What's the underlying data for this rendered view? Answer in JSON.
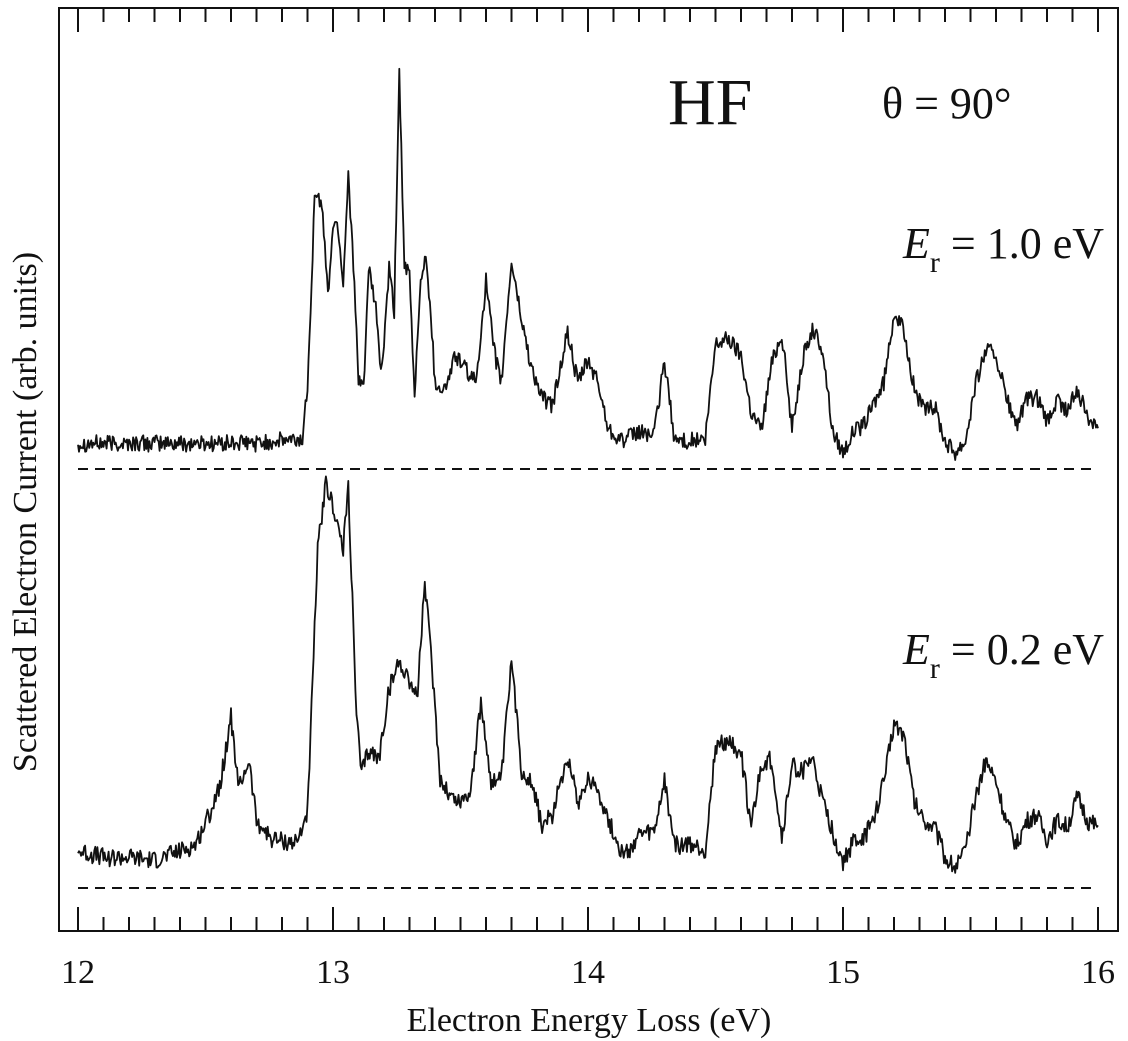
{
  "chart_data": {
    "type": "line",
    "title": "",
    "xlabel": "Electron Energy Loss (eV)",
    "ylabel": "Scattered Electron Current (arb. units)",
    "xlim": [
      12,
      16
    ],
    "x_ticks": [
      "12",
      "13",
      "14",
      "15",
      "16"
    ],
    "x_minor_step": 0.1,
    "y_ticks_shown": false,
    "grid": false,
    "legend": "none",
    "annotations": {
      "molecule": "HF",
      "angle": "θ = 90°",
      "series_labels": [
        {
          "symbol": "E",
          "subscript": "r",
          "rest": " = 1.0 eV"
        },
        {
          "symbol": "E",
          "subscript": "r",
          "rest": " = 0.2 eV"
        }
      ]
    },
    "series": [
      {
        "label_index": 0,
        "baseline": 0,
        "points": [
          [
            12.0,
            0.09
          ],
          [
            12.1,
            0.09
          ],
          [
            12.2,
            0.09
          ],
          [
            12.3,
            0.09
          ],
          [
            12.4,
            0.09
          ],
          [
            12.5,
            0.09
          ],
          [
            12.6,
            0.09
          ],
          [
            12.7,
            0.09
          ],
          [
            12.8,
            0.1
          ],
          [
            12.88,
            0.1
          ],
          [
            12.9,
            0.3
          ],
          [
            12.93,
            0.99
          ],
          [
            12.96,
            0.9
          ],
          [
            12.98,
            0.6
          ],
          [
            13.0,
            0.86
          ],
          [
            13.02,
            0.85
          ],
          [
            13.04,
            0.65
          ],
          [
            13.06,
            1.04
          ],
          [
            13.08,
            0.72
          ],
          [
            13.1,
            0.3
          ],
          [
            13.12,
            0.29
          ],
          [
            13.14,
            0.7
          ],
          [
            13.17,
            0.55
          ],
          [
            13.19,
            0.32
          ],
          [
            13.22,
            0.7
          ],
          [
            13.24,
            0.55
          ],
          [
            13.26,
            1.4
          ],
          [
            13.28,
            0.7
          ],
          [
            13.3,
            0.68
          ],
          [
            13.32,
            0.25
          ],
          [
            13.34,
            0.62
          ],
          [
            13.36,
            0.75
          ],
          [
            13.38,
            0.6
          ],
          [
            13.4,
            0.3
          ],
          [
            13.44,
            0.28
          ],
          [
            13.48,
            0.4
          ],
          [
            13.52,
            0.35
          ],
          [
            13.56,
            0.3
          ],
          [
            13.6,
            0.66
          ],
          [
            13.63,
            0.42
          ],
          [
            13.66,
            0.3
          ],
          [
            13.7,
            0.73
          ],
          [
            13.74,
            0.52
          ],
          [
            13.78,
            0.35
          ],
          [
            13.82,
            0.25
          ],
          [
            13.86,
            0.22
          ],
          [
            13.92,
            0.48
          ],
          [
            13.96,
            0.3
          ],
          [
            14.0,
            0.38
          ],
          [
            14.04,
            0.3
          ],
          [
            14.08,
            0.14
          ],
          [
            14.14,
            0.1
          ],
          [
            14.2,
            0.13
          ],
          [
            14.26,
            0.12
          ],
          [
            14.3,
            0.38
          ],
          [
            14.34,
            0.1
          ],
          [
            14.4,
            0.1
          ],
          [
            14.46,
            0.1
          ],
          [
            14.5,
            0.44
          ],
          [
            14.55,
            0.46
          ],
          [
            14.6,
            0.4
          ],
          [
            14.64,
            0.2
          ],
          [
            14.68,
            0.14
          ],
          [
            14.72,
            0.37
          ],
          [
            14.76,
            0.48
          ],
          [
            14.8,
            0.14
          ],
          [
            14.84,
            0.38
          ],
          [
            14.88,
            0.49
          ],
          [
            14.92,
            0.42
          ],
          [
            14.96,
            0.13
          ],
          [
            15.0,
            0.06
          ],
          [
            15.04,
            0.13
          ],
          [
            15.08,
            0.15
          ],
          [
            15.12,
            0.23
          ],
          [
            15.16,
            0.3
          ],
          [
            15.2,
            0.55
          ],
          [
            15.24,
            0.48
          ],
          [
            15.28,
            0.28
          ],
          [
            15.32,
            0.2
          ],
          [
            15.36,
            0.22
          ],
          [
            15.4,
            0.1
          ],
          [
            15.44,
            0.06
          ],
          [
            15.48,
            0.1
          ],
          [
            15.52,
            0.3
          ],
          [
            15.56,
            0.42
          ],
          [
            15.6,
            0.4
          ],
          [
            15.64,
            0.25
          ],
          [
            15.68,
            0.15
          ],
          [
            15.72,
            0.24
          ],
          [
            15.76,
            0.25
          ],
          [
            15.8,
            0.16
          ],
          [
            15.84,
            0.24
          ],
          [
            15.88,
            0.2
          ],
          [
            15.92,
            0.28
          ],
          [
            15.96,
            0.18
          ],
          [
            16.0,
            0.16
          ]
        ]
      },
      {
        "label_index": 1,
        "baseline": 0,
        "points": [
          [
            12.0,
            0.12
          ],
          [
            12.1,
            0.1
          ],
          [
            12.2,
            0.1
          ],
          [
            12.3,
            0.09
          ],
          [
            12.4,
            0.12
          ],
          [
            12.46,
            0.14
          ],
          [
            12.52,
            0.25
          ],
          [
            12.56,
            0.35
          ],
          [
            12.6,
            0.56
          ],
          [
            12.63,
            0.32
          ],
          [
            12.67,
            0.42
          ],
          [
            12.7,
            0.22
          ],
          [
            12.76,
            0.16
          ],
          [
            12.82,
            0.15
          ],
          [
            12.86,
            0.15
          ],
          [
            12.9,
            0.25
          ],
          [
            12.94,
            1.1
          ],
          [
            12.97,
            1.32
          ],
          [
            13.0,
            1.25
          ],
          [
            13.02,
            1.18
          ],
          [
            13.04,
            1.1
          ],
          [
            13.06,
            1.32
          ],
          [
            13.09,
            0.6
          ],
          [
            13.11,
            0.37
          ],
          [
            13.14,
            0.45
          ],
          [
            13.18,
            0.42
          ],
          [
            13.22,
            0.65
          ],
          [
            13.26,
            0.74
          ],
          [
            13.3,
            0.68
          ],
          [
            13.33,
            0.62
          ],
          [
            13.36,
            1.0
          ],
          [
            13.39,
            0.7
          ],
          [
            13.42,
            0.36
          ],
          [
            13.46,
            0.3
          ],
          [
            13.5,
            0.28
          ],
          [
            13.54,
            0.32
          ],
          [
            13.58,
            0.6
          ],
          [
            13.62,
            0.35
          ],
          [
            13.66,
            0.35
          ],
          [
            13.7,
            0.74
          ],
          [
            13.74,
            0.38
          ],
          [
            13.78,
            0.35
          ],
          [
            13.82,
            0.2
          ],
          [
            13.86,
            0.24
          ],
          [
            13.92,
            0.44
          ],
          [
            13.96,
            0.28
          ],
          [
            14.0,
            0.36
          ],
          [
            14.04,
            0.32
          ],
          [
            14.08,
            0.22
          ],
          [
            14.14,
            0.1
          ],
          [
            14.2,
            0.17
          ],
          [
            14.26,
            0.18
          ],
          [
            14.3,
            0.35
          ],
          [
            14.34,
            0.14
          ],
          [
            14.4,
            0.14
          ],
          [
            14.46,
            0.12
          ],
          [
            14.5,
            0.46
          ],
          [
            14.55,
            0.48
          ],
          [
            14.6,
            0.44
          ],
          [
            14.64,
            0.2
          ],
          [
            14.68,
            0.4
          ],
          [
            14.72,
            0.42
          ],
          [
            14.76,
            0.16
          ],
          [
            14.8,
            0.4
          ],
          [
            14.84,
            0.38
          ],
          [
            14.88,
            0.42
          ],
          [
            14.92,
            0.28
          ],
          [
            14.96,
            0.18
          ],
          [
            15.0,
            0.08
          ],
          [
            15.04,
            0.15
          ],
          [
            15.08,
            0.16
          ],
          [
            15.12,
            0.22
          ],
          [
            15.16,
            0.35
          ],
          [
            15.2,
            0.54
          ],
          [
            15.24,
            0.5
          ],
          [
            15.28,
            0.28
          ],
          [
            15.32,
            0.22
          ],
          [
            15.36,
            0.2
          ],
          [
            15.4,
            0.1
          ],
          [
            15.44,
            0.07
          ],
          [
            15.48,
            0.12
          ],
          [
            15.52,
            0.3
          ],
          [
            15.56,
            0.42
          ],
          [
            15.6,
            0.35
          ],
          [
            15.64,
            0.22
          ],
          [
            15.68,
            0.14
          ],
          [
            15.72,
            0.22
          ],
          [
            15.76,
            0.24
          ],
          [
            15.8,
            0.16
          ],
          [
            15.84,
            0.22
          ],
          [
            15.88,
            0.2
          ],
          [
            15.92,
            0.3
          ],
          [
            15.96,
            0.22
          ],
          [
            16.0,
            0.2
          ]
        ]
      }
    ]
  }
}
